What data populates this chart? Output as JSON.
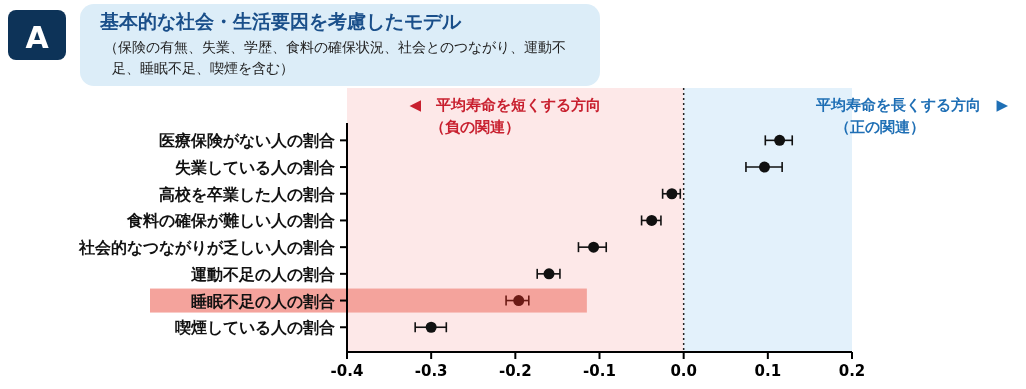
{
  "chart_data": {
    "type": "scatter",
    "title": "基本的な社会・生活要因を考慮したモデル",
    "subtitle": "（保険の有無、失業、学歴、食料の確保状況、社会とのつながり、運動不足、睡眠不足、喫煙を含む）",
    "orientation": "horizontal",
    "categories": [
      "医療保険がない人の割合",
      "失業している人の割合",
      "高校を卒業した人の割合",
      "食料の確保が難しい人の割合",
      "社会的なつながりが乏しい人の割合",
      "運動不足の人の割合",
      "睡眠不足の人の割合",
      "喫煙している人の割合"
    ],
    "values": [
      0.114,
      0.096,
      -0.014,
      -0.038,
      -0.107,
      -0.16,
      -0.196,
      -0.3
    ],
    "errors": [
      [
        0.097,
        0.129
      ],
      [
        0.074,
        0.117
      ],
      [
        -0.025,
        -0.004
      ],
      [
        -0.05,
        -0.027
      ],
      [
        -0.125,
        -0.092
      ],
      [
        -0.174,
        -0.147
      ],
      [
        -0.211,
        -0.184
      ],
      [
        -0.319,
        -0.282
      ]
    ],
    "colors": [
      "#111111",
      "#111111",
      "#111111",
      "#111111",
      "#111111",
      "#111111",
      "#6b1a14",
      "#111111"
    ],
    "marker": "circle",
    "xlim": [
      -0.4,
      0.2
    ],
    "xticks": [
      -0.4,
      -0.3,
      -0.2,
      -0.1,
      {
        "value": 0,
        "label": "0.0"
      },
      0.1,
      0.2
    ],
    "ref_lines": [
      {
        "axis": "x",
        "value": 0,
        "line_style": "dotted",
        "color": "#222222"
      }
    ],
    "bands": [
      {
        "axis": "x",
        "from": -0.4,
        "to": 0,
        "color": "#fde8e8",
        "label": "◀　平均寿命を短くする方向"
      },
      {
        "axis": "x",
        "from": 0,
        "to": 0.2,
        "color": "#e3f1fb",
        "label": "平均寿命を長くする方向　▶"
      },
      {
        "axis": "y",
        "from": "睡眠不足の人の割合",
        "to": "睡眠不足の人の割合",
        "color": "#f4a39c"
      }
    ],
    "annotations": [
      "A",
      "（負の関連）",
      "（正の関連）"
    ],
    "grid": false
  }
}
